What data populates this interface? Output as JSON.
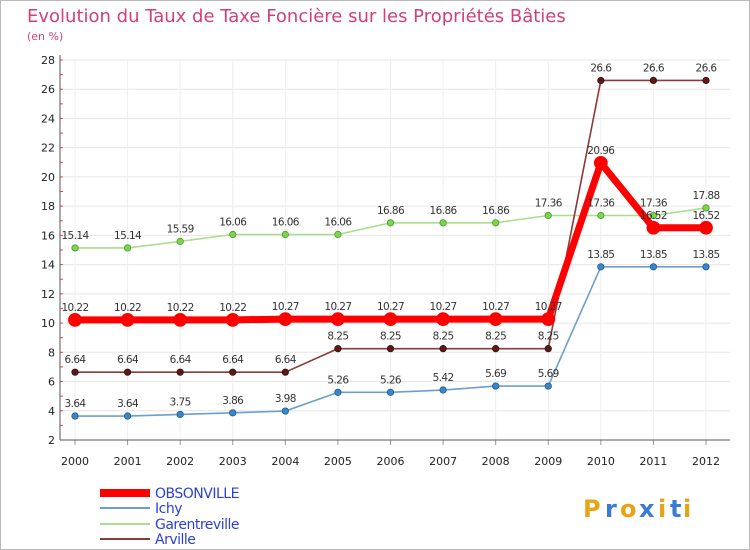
{
  "chart_data": {
    "type": "line",
    "title": "Evolution du Taux de Taxe Foncière sur les Propriétés Bâties",
    "ylabel": "(en %)",
    "xlabel": "",
    "ylim": [
      2,
      28
    ],
    "yticks": [
      2,
      4,
      6,
      8,
      10,
      12,
      14,
      16,
      18,
      20,
      22,
      24,
      26,
      28
    ],
    "categories": [
      "2000",
      "2001",
      "2002",
      "2003",
      "2004",
      "2005",
      "2006",
      "2007",
      "2008",
      "2009",
      "2010",
      "2011",
      "2012"
    ],
    "series": [
      {
        "name": "OBSONVILLE",
        "color": "#ff0000",
        "values": [
          10.22,
          10.22,
          10.22,
          10.22,
          10.27,
          10.27,
          10.27,
          10.27,
          10.27,
          10.27,
          20.96,
          16.52,
          16.52
        ],
        "labels": [
          "10.22",
          "10.22",
          "10.22",
          "10.22",
          "10.27",
          "10.27",
          "10.27",
          "10.27",
          "10.27",
          "10.27",
          "20.96",
          "16.52",
          "16.52"
        ]
      },
      {
        "name": "Ichy",
        "color": "#6c9fce",
        "values": [
          3.64,
          3.64,
          3.75,
          3.86,
          3.98,
          5.26,
          5.26,
          5.42,
          5.69,
          5.69,
          13.85,
          13.85,
          13.85
        ],
        "labels": [
          "3.64",
          "3.64",
          "3.75",
          "3.86",
          "3.98",
          "5.26",
          "5.26",
          "5.42",
          "5.69",
          "5.69",
          "13.85",
          "13.85",
          "13.85"
        ]
      },
      {
        "name": "Garentreville",
        "color": "#a8de8c",
        "values": [
          15.14,
          15.14,
          15.59,
          16.06,
          16.06,
          16.06,
          16.86,
          16.86,
          16.86,
          17.36,
          17.36,
          17.36,
          17.88
        ],
        "labels": [
          "15.14",
          "15.14",
          "15.59",
          "16.06",
          "16.06",
          "16.06",
          "16.86",
          "16.86",
          "16.86",
          "17.36",
          "17.36",
          "17.36",
          "17.88"
        ]
      },
      {
        "name": "Arville",
        "color": "#8b3a3a",
        "values": [
          6.64,
          6.64,
          6.64,
          6.64,
          6.64,
          8.25,
          8.25,
          8.25,
          8.25,
          8.25,
          26.6,
          26.6,
          26.6
        ],
        "labels": [
          "6.64",
          "6.64",
          "6.64",
          "6.64",
          "6.64",
          "8.25",
          "8.25",
          "8.25",
          "8.25",
          "8.25",
          "26.6",
          "26.6",
          "26.6"
        ]
      }
    ],
    "legend_position": "bottom-left"
  },
  "watermark": {
    "letters": [
      "P",
      "r",
      "o",
      "x",
      "i",
      "t",
      "i"
    ],
    "colors": [
      "#e8a317",
      "#3a7bd5",
      "#e8a317",
      "#3a7bd5",
      "#e8a317",
      "#3a7bd5",
      "#e8a317"
    ]
  }
}
